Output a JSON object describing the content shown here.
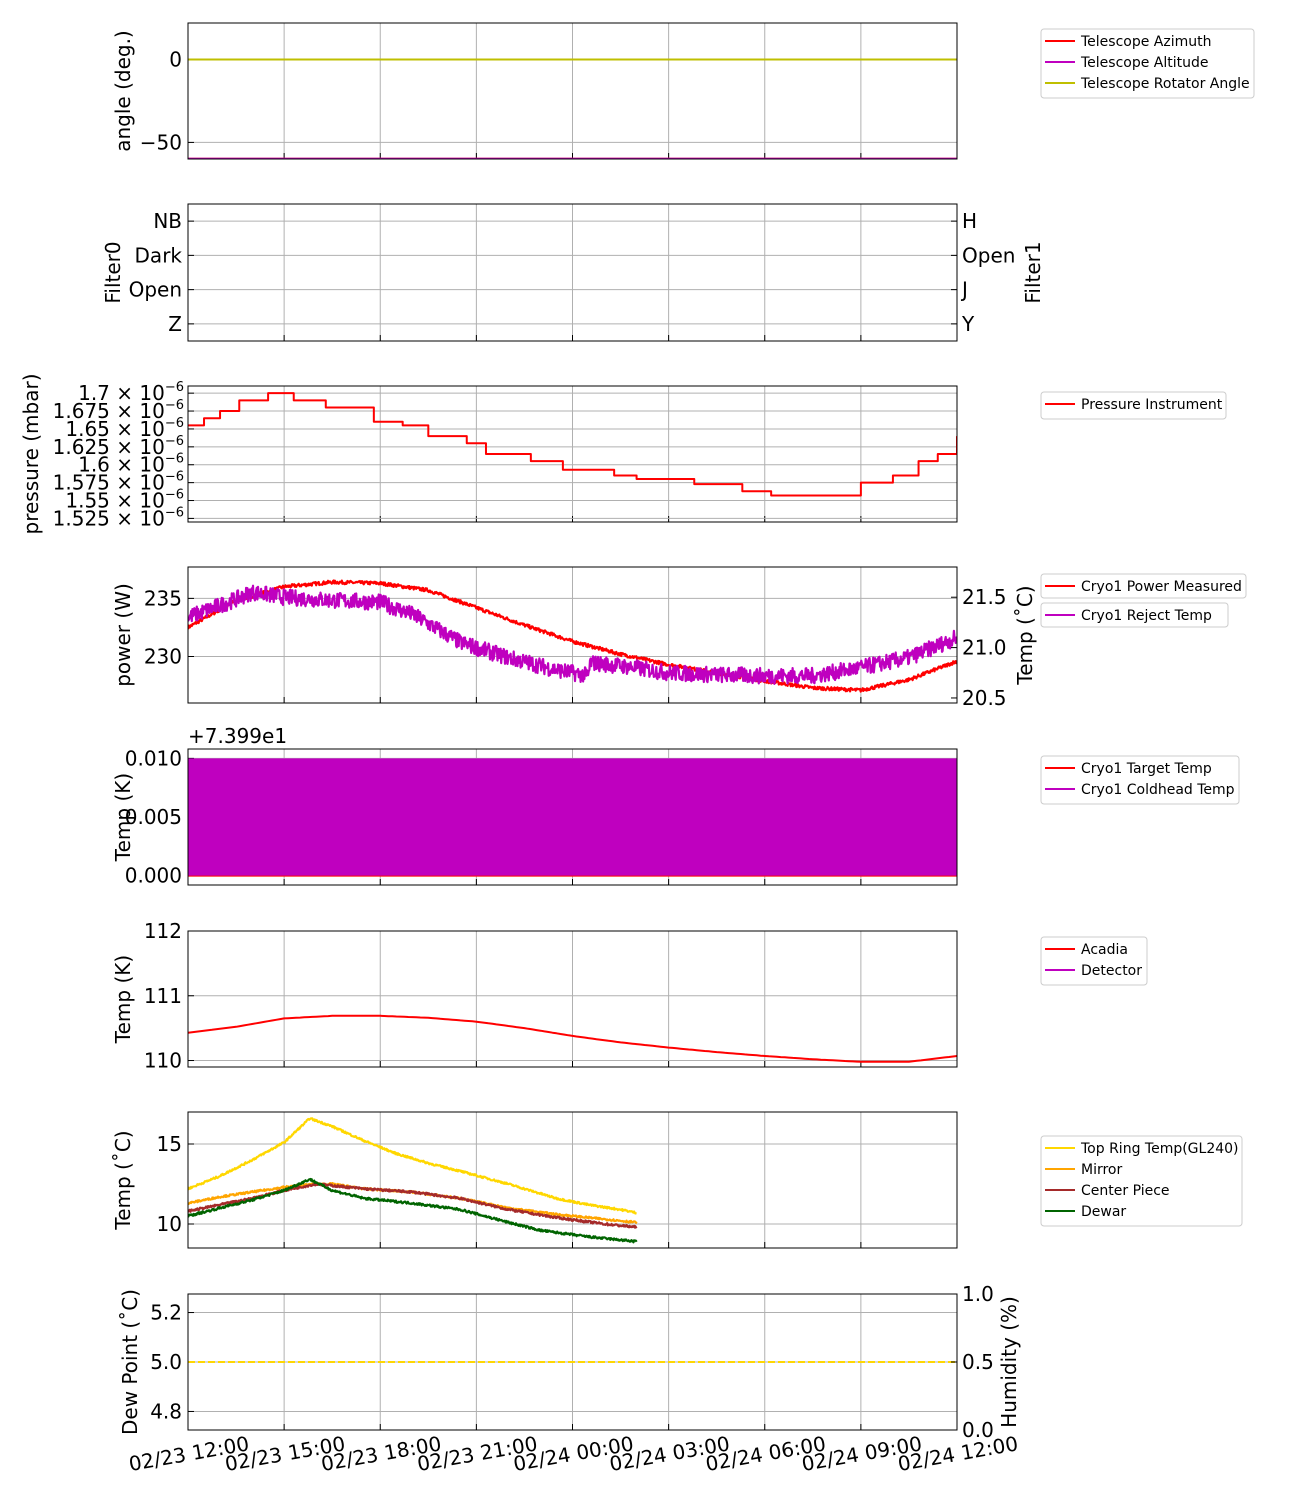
{
  "x_axis": {
    "ticks": [
      "02/23 12:00",
      "02/23 15:00",
      "02/23 18:00",
      "02/23 21:00",
      "02/24 00:00",
      "02/24 03:00",
      "02/24 06:00",
      "02/24 09:00",
      "02/24 12:00"
    ],
    "range_hours": [
      0,
      24
    ]
  },
  "colors": {
    "red": "#ff0000",
    "magenta": "#bf00bf",
    "olive": "#bfbf00",
    "gold": "#ffd700",
    "orange": "#ffa500",
    "brown": "#a52a2a",
    "green": "#006400"
  },
  "chart_data": [
    {
      "id": "telescope",
      "type": "line",
      "ylabel": "angle (deg.)",
      "ylim": [
        -60,
        22
      ],
      "yticks": [
        {
          "v": 0,
          "t": "0"
        },
        {
          "v": -50,
          "t": "−50"
        }
      ],
      "legend": [
        "Telescope Azimuth",
        "Telescope Altitude",
        "Telescope Rotator Angle"
      ],
      "series": [
        {
          "name": "Telescope Azimuth",
          "color": "#ff0000",
          "x": [
            0,
            24
          ],
          "y": [
            -59.8,
            -59.8
          ]
        },
        {
          "name": "Telescope Altitude",
          "color": "#bf00bf",
          "x": [
            0,
            24
          ],
          "y": [
            -59.8,
            -59.8
          ]
        },
        {
          "name": "Telescope Rotator Angle",
          "color": "#bfbf00",
          "x": [
            0,
            24
          ],
          "y": [
            0,
            0
          ]
        }
      ]
    },
    {
      "id": "filters",
      "type": "line",
      "ylabel": "Filter0",
      "ylabel_right": "Filter1",
      "ylim": [
        -0.5,
        3.5
      ],
      "yticks": [
        {
          "v": 0,
          "t": "Z"
        },
        {
          "v": 1,
          "t": "Open"
        },
        {
          "v": 2,
          "t": "Dark"
        },
        {
          "v": 3,
          "t": "NB"
        }
      ],
      "yticks_right": [
        {
          "v": 0,
          "t": "Y"
        },
        {
          "v": 1,
          "t": "J"
        },
        {
          "v": 2,
          "t": "Open"
        },
        {
          "v": 3,
          "t": "H"
        }
      ],
      "series": []
    },
    {
      "id": "pressure",
      "type": "line",
      "ylabel": "pressure (mbar)",
      "ylim": [
        1.52e-06,
        1.71e-06
      ],
      "yticks": [
        {
          "v": 1.7e-06,
          "base": "1.7 × 10",
          "exp": "−6"
        },
        {
          "v": 1.675e-06,
          "base": "1.675 × 10",
          "exp": "−6"
        },
        {
          "v": 1.65e-06,
          "base": "1.65 × 10",
          "exp": "−6"
        },
        {
          "v": 1.625e-06,
          "base": "1.625 × 10",
          "exp": "−6"
        },
        {
          "v": 1.6e-06,
          "base": "1.6 × 10",
          "exp": "−6"
        },
        {
          "v": 1.575e-06,
          "base": "1.575 × 10",
          "exp": "−6"
        },
        {
          "v": 1.55e-06,
          "base": "1.55 × 10",
          "exp": "−6"
        },
        {
          "v": 1.525e-06,
          "base": "1.525 × 10",
          "exp": "−6"
        }
      ],
      "legend": [
        "Pressure Instrument"
      ],
      "series": [
        {
          "name": "Pressure Instrument",
          "color": "#ff0000",
          "step": true,
          "x": [
            0,
            0.5,
            1,
            1.6,
            2.5,
            3.3,
            4.3,
            5.8,
            6.7,
            7.5,
            8.7,
            9.3,
            10.7,
            11.7,
            13.3,
            14,
            15.8,
            17.3,
            18.2,
            19.3,
            21,
            22,
            22.8,
            23.4,
            24
          ],
          "y": [
            1.655e-06,
            1.665e-06,
            1.675e-06,
            1.69e-06,
            1.7e-06,
            1.69e-06,
            1.68e-06,
            1.66e-06,
            1.655e-06,
            1.64e-06,
            1.63e-06,
            1.615e-06,
            1.605e-06,
            1.593e-06,
            1.585e-06,
            1.58e-06,
            1.573e-06,
            1.563e-06,
            1.557e-06,
            1.557e-06,
            1.575e-06,
            1.585e-06,
            1.605e-06,
            1.615e-06,
            1.64e-06
          ]
        }
      ]
    },
    {
      "id": "cryo_power",
      "type": "line",
      "ylabel": "power (W)",
      "ylabel_right": "Temp (˚C)",
      "ylim": [
        226,
        237.7
      ],
      "ylim_right": [
        20.45,
        21.8
      ],
      "yticks": [
        {
          "v": 230,
          "t": "230"
        },
        {
          "v": 235,
          "t": "235"
        }
      ],
      "yticks_right": [
        {
          "v": 20.5,
          "t": "20.5"
        },
        {
          "v": 21.0,
          "t": "21.0"
        },
        {
          "v": 21.5,
          "t": "21.5"
        }
      ],
      "legend": [
        "Cryo1 Power Measured",
        "Cryo1 Reject Temp"
      ],
      "series": [
        {
          "name": "Cryo1 Power Measured",
          "color": "#ff0000",
          "axis": "left",
          "noise": 0.15,
          "x": [
            0,
            1.5,
            3,
            4.5,
            6,
            7.5,
            9,
            10.5,
            12,
            13.5,
            15,
            16.5,
            18,
            19.5,
            21,
            22.5,
            24
          ],
          "y": [
            232.5,
            234.8,
            236,
            236.4,
            236.3,
            235.7,
            234.2,
            232.7,
            231.3,
            230.2,
            229.3,
            228.6,
            227.9,
            227.3,
            227.1,
            228,
            229.6
          ]
        },
        {
          "name": "Cryo1 Reject Temp",
          "color": "#bf00bf",
          "axis": "right",
          "noise": 0.08,
          "x": [
            0,
            1.5,
            2,
            3,
            4.5,
            6,
            7,
            8.5,
            10,
            11.5,
            12.5,
            12.55,
            13.5,
            15,
            16.5,
            18,
            19.5,
            21,
            22.5,
            24
          ],
          "y": [
            21.3,
            21.48,
            21.55,
            21.5,
            21.47,
            21.45,
            21.33,
            21.05,
            20.9,
            20.78,
            20.72,
            20.85,
            20.82,
            20.75,
            20.73,
            20.72,
            20.72,
            20.8,
            20.9,
            21.1
          ]
        }
      ]
    },
    {
      "id": "cryo_temp",
      "type": "line",
      "offset_label": "+7.399e1",
      "ylabel": "Temp (K)",
      "ylim": [
        -0.0008,
        0.0108
      ],
      "yticks": [
        {
          "v": 0,
          "t": "0.000"
        },
        {
          "v": 0.005,
          "t": "0.005"
        },
        {
          "v": 0.01,
          "t": "0.010"
        }
      ],
      "legend": [
        "Cryo1 Target Temp",
        "Cryo1 Coldhead Temp"
      ],
      "series": [
        {
          "name": "Cryo1 Target Temp",
          "color": "#ff0000",
          "x": [
            0,
            24
          ],
          "y": [
            0,
            0
          ]
        },
        {
          "name": "Cryo1 Coldhead Temp",
          "color": "#bf00bf",
          "band": [
            0,
            0.01
          ],
          "x": [
            0,
            24
          ],
          "y": [
            0,
            0.01
          ]
        }
      ]
    },
    {
      "id": "acadia",
      "type": "line",
      "ylabel": "Temp (K)",
      "ylim": [
        109.9,
        112
      ],
      "yticks": [
        {
          "v": 110,
          "t": "110"
        },
        {
          "v": 111,
          "t": "111"
        },
        {
          "v": 112,
          "t": "112"
        }
      ],
      "legend": [
        "Acadia",
        "Detector"
      ],
      "series": [
        {
          "name": "Acadia",
          "color": "#ff0000",
          "x": [
            0,
            1.5,
            3,
            4.5,
            6,
            7.5,
            9,
            10.5,
            12,
            13.5,
            15,
            16.5,
            18,
            19.5,
            21,
            22.5,
            24
          ],
          "y": [
            110.43,
            110.52,
            110.65,
            110.69,
            110.69,
            110.66,
            110.6,
            110.5,
            110.38,
            110.28,
            110.2,
            110.13,
            110.07,
            110.02,
            109.98,
            109.98,
            110.07
          ]
        },
        {
          "name": "Detector",
          "color": "#bf00bf",
          "x": [],
          "y": []
        }
      ]
    },
    {
      "id": "ambient",
      "type": "line",
      "ylabel": "Temp (˚C)",
      "ylim": [
        8.5,
        17
      ],
      "yticks": [
        {
          "v": 10,
          "t": "10"
        },
        {
          "v": 15,
          "t": "15"
        }
      ],
      "legend": [
        "Top Ring Temp(GL240)",
        "Mirror",
        "Center Piece",
        "Dewar"
      ],
      "series": [
        {
          "name": "Top Ring Temp(GL240)",
          "color": "#ffd700",
          "noise": 0.06,
          "x": [
            0,
            1,
            2,
            3,
            3.8,
            4.5,
            5.5,
            6.5,
            7.5,
            8.5,
            10,
            11.5,
            12.5,
            13.5,
            14
          ],
          "y": [
            12.2,
            13,
            14,
            15.1,
            16.6,
            16.1,
            15.2,
            14.4,
            13.8,
            13.3,
            12.5,
            11.6,
            11.2,
            10.9,
            10.7
          ]
        },
        {
          "name": "Mirror",
          "color": "#ffa500",
          "noise": 0.06,
          "x": [
            0,
            1,
            2,
            3,
            4,
            4.5,
            5.5,
            7,
            8.5,
            10,
            11.5,
            13,
            14
          ],
          "y": [
            11.3,
            11.7,
            12,
            12.3,
            12.5,
            12.5,
            12.2,
            12,
            11.6,
            11,
            10.6,
            10.3,
            10.1
          ]
        },
        {
          "name": "Center Piece",
          "color": "#a52a2a",
          "noise": 0.07,
          "x": [
            0,
            1,
            2,
            3,
            4,
            4.5,
            5.5,
            7,
            8.5,
            10,
            11.5,
            13,
            14
          ],
          "y": [
            10.8,
            11.2,
            11.6,
            12.1,
            12.5,
            12.4,
            12.2,
            12,
            11.6,
            10.9,
            10.4,
            10,
            9.8
          ]
        },
        {
          "name": "Dewar",
          "color": "#006400",
          "noise": 0.07,
          "x": [
            0,
            1,
            2,
            3,
            3.8,
            4.5,
            5.5,
            7,
            8.5,
            10,
            11,
            12.5,
            14
          ],
          "y": [
            10.5,
            11,
            11.5,
            12.1,
            12.8,
            12.1,
            11.6,
            11.3,
            10.9,
            10.1,
            9.6,
            9.2,
            8.9
          ]
        }
      ]
    },
    {
      "id": "dewpoint",
      "type": "line",
      "ylabel": "Dew Point (˚C)",
      "ylabel_right": "Humidity (%)",
      "ylim": [
        4.725,
        5.275
      ],
      "ylim_right": [
        0,
        1
      ],
      "yticks": [
        {
          "v": 4.8,
          "t": "4.8"
        },
        {
          "v": 5.0,
          "t": "5.0"
        },
        {
          "v": 5.2,
          "t": "5.2"
        }
      ],
      "yticks_right": [
        {
          "v": 0,
          "t": "0.0"
        },
        {
          "v": 0.5,
          "t": "0.5"
        },
        {
          "v": 1,
          "t": "1.0"
        }
      ],
      "series": [
        {
          "name": "Dew Point",
          "color": "#ffd700",
          "dashed": true,
          "x": [
            0,
            24
          ],
          "y": [
            5.0,
            5.0
          ]
        }
      ]
    }
  ]
}
